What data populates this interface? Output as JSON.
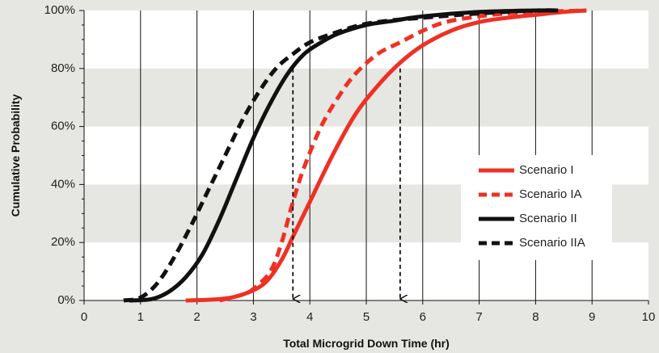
{
  "chart_data": {
    "type": "line",
    "title": "",
    "xlabel": "Total Microgrid Down Time (hr)",
    "ylabel": "Cumulative Probability",
    "xlim": [
      0,
      10
    ],
    "ylim": [
      0,
      100
    ],
    "x_ticks": [
      "0",
      "1",
      "2",
      "3",
      "4",
      "5",
      "6",
      "7",
      "8",
      "9",
      "10"
    ],
    "y_ticks": [
      "0%",
      "20%",
      "40%",
      "60%",
      "80%",
      "100%"
    ],
    "grid": "vertical lines at each hour; shaded horizontal bands 20-40% and 60-80%",
    "legend_position": "right-center",
    "series": [
      {
        "name": "Scenario I",
        "color": "#ee3124",
        "dash": "solid",
        "points": [
          [
            1.8,
            0
          ],
          [
            2.4,
            0.5
          ],
          [
            2.8,
            2
          ],
          [
            3.2,
            6
          ],
          [
            3.5,
            14
          ],
          [
            3.7,
            22
          ],
          [
            4.0,
            34
          ],
          [
            4.4,
            50
          ],
          [
            4.8,
            64
          ],
          [
            5.2,
            74
          ],
          [
            5.6,
            82
          ],
          [
            6.0,
            88
          ],
          [
            6.5,
            93
          ],
          [
            7.0,
            96
          ],
          [
            7.5,
            97.5
          ],
          [
            8.0,
            98.5
          ],
          [
            8.5,
            99.5
          ],
          [
            8.9,
            100
          ]
        ]
      },
      {
        "name": "Scenario IA",
        "color": "#ee3124",
        "dash": "dashed",
        "points": [
          [
            2.4,
            0
          ],
          [
            2.8,
            2
          ],
          [
            3.0,
            4
          ],
          [
            3.3,
            10
          ],
          [
            3.5,
            20
          ],
          [
            3.7,
            34
          ],
          [
            3.9,
            46
          ],
          [
            4.2,
            60
          ],
          [
            4.5,
            70
          ],
          [
            4.8,
            78
          ],
          [
            5.2,
            85
          ],
          [
            5.6,
            89
          ],
          [
            6.0,
            93
          ],
          [
            6.4,
            96
          ],
          [
            7.0,
            98
          ],
          [
            7.5,
            99
          ],
          [
            8.0,
            99.5
          ],
          [
            8.9,
            100
          ]
        ]
      },
      {
        "name": "Scenario II",
        "color": "#111111",
        "dash": "solid",
        "points": [
          [
            0.8,
            0
          ],
          [
            1.2,
            0.5
          ],
          [
            1.5,
            3
          ],
          [
            1.8,
            8
          ],
          [
            2.1,
            16
          ],
          [
            2.4,
            28
          ],
          [
            2.7,
            42
          ],
          [
            3.0,
            56
          ],
          [
            3.3,
            68
          ],
          [
            3.6,
            78
          ],
          [
            3.9,
            85
          ],
          [
            4.2,
            89
          ],
          [
            4.5,
            92
          ],
          [
            5.0,
            95
          ],
          [
            5.5,
            96.5
          ],
          [
            6.0,
            98
          ],
          [
            7.0,
            99.5
          ],
          [
            8.0,
            100
          ],
          [
            8.4,
            100
          ]
        ]
      },
      {
        "name": "Scenario IIA",
        "color": "#111111",
        "dash": "dashed",
        "points": [
          [
            0.7,
            0
          ],
          [
            1.0,
            1
          ],
          [
            1.3,
            6
          ],
          [
            1.6,
            15
          ],
          [
            1.9,
            26
          ],
          [
            2.2,
            38
          ],
          [
            2.5,
            50
          ],
          [
            2.8,
            62
          ],
          [
            3.1,
            72
          ],
          [
            3.4,
            80
          ],
          [
            3.7,
            85
          ],
          [
            4.0,
            89
          ],
          [
            4.4,
            92
          ],
          [
            4.9,
            95
          ],
          [
            5.4,
            96.5
          ],
          [
            6.0,
            97.5
          ],
          [
            7.0,
            99
          ],
          [
            8.0,
            100
          ],
          [
            8.4,
            100
          ]
        ]
      }
    ],
    "annotations": [
      {
        "type": "arrow",
        "style": "dashed",
        "x": 3.7,
        "from_y": 80,
        "to_y": 0
      },
      {
        "type": "arrow",
        "style": "dashed",
        "x": 5.6,
        "from_y": 80,
        "to_y": 0
      }
    ]
  }
}
